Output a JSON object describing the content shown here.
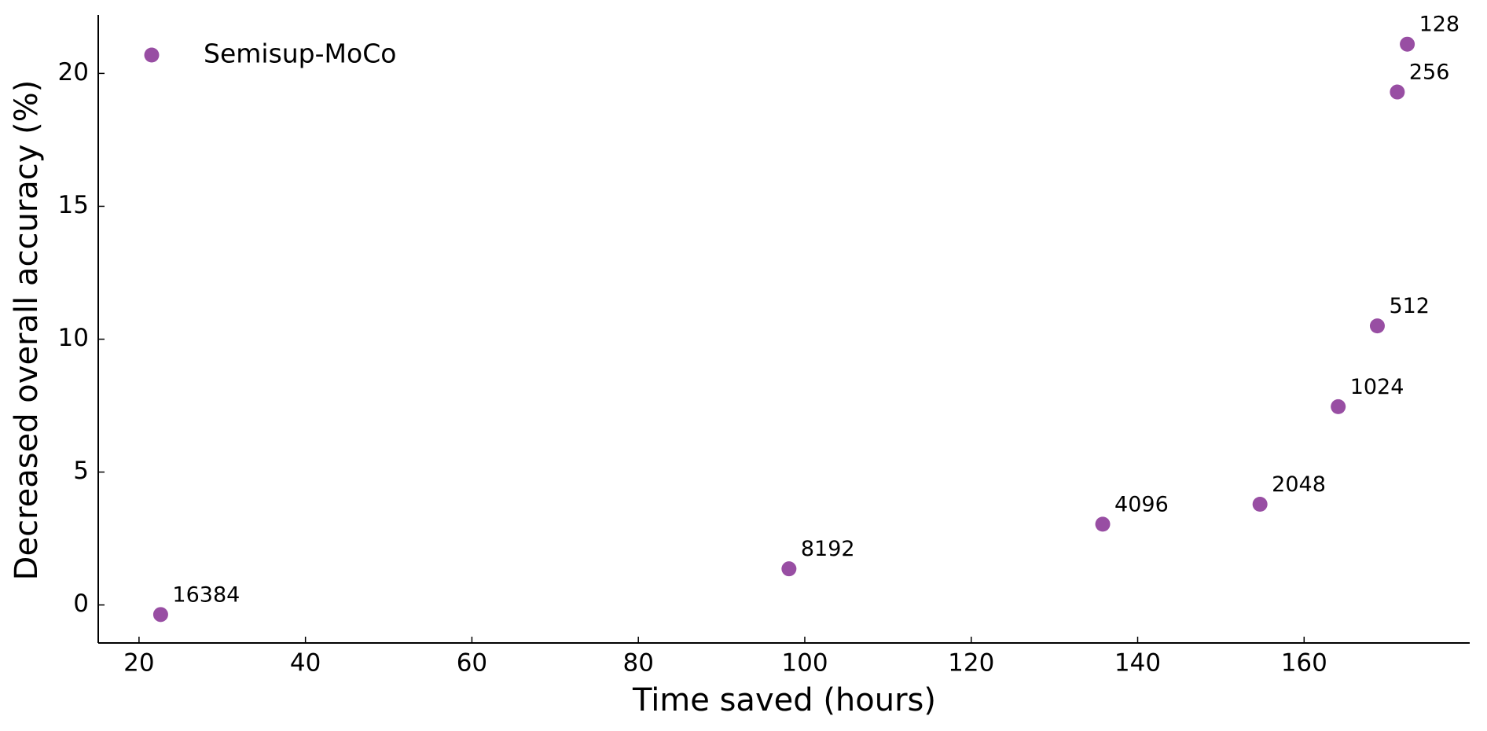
{
  "chart_data": {
    "type": "scatter",
    "xlabel": "Time saved (hours)",
    "ylabel": "Decreased overall accuracy (%)",
    "xlim": [
      15.1,
      179.9
    ],
    "ylim": [
      -1.43,
      22.2
    ],
    "xticks": [
      20,
      40,
      60,
      80,
      100,
      120,
      140,
      160
    ],
    "yticks": [
      0,
      5,
      10,
      15,
      20
    ],
    "legend": "upper left",
    "series": [
      {
        "name": "Semisup-MoCo",
        "color": "#984ea3",
        "x": [
          22.6,
          98.1,
          135.8,
          154.7,
          164.1,
          168.8,
          171.2,
          172.4
        ],
        "values": [
          -0.36,
          1.36,
          3.04,
          3.79,
          7.46,
          10.5,
          19.3,
          21.1
        ],
        "labels": [
          "16384",
          "8192",
          "4096",
          "2048",
          "1024",
          "512",
          "256",
          "128"
        ]
      }
    ]
  }
}
